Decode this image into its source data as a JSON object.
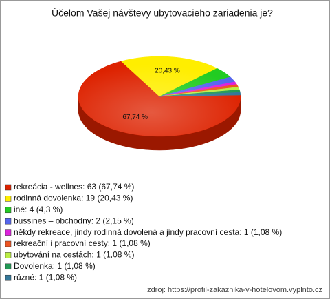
{
  "chart_data": {
    "type": "pie",
    "title": "Účelom Vašej návštevy ubytovacieho zariadenia je?",
    "categories": [
      "rekreácia - wellnes: 63 (67,74 %)",
      "rodinná dovolenka: 19 (20,43 %)",
      "iné: 4 (4,3 %)",
      "bussines – obchodný: 2 (2,15 %)",
      "někdy rekreace, jindy rodinná dovolená a jindy pracovní cesta: 1 (1,08 %)",
      "rekreační i pracovní cesty: 1 (1,08 %)",
      "ubytování na cestách: 1 (1,08 %)",
      "Dovolenka: 1 (1,08 %)",
      "různé: 1 (1,08 %)"
    ],
    "values": [
      67.74,
      20.43,
      4.3,
      2.15,
      1.08,
      1.08,
      1.08,
      1.08,
      1.08
    ],
    "value_labels": [
      "67,74 %",
      "20,43 %",
      null,
      null,
      null,
      null,
      null,
      null,
      null
    ],
    "colors": [
      "#dd2200",
      "#ffee00",
      "#22cc22",
      "#5566ee",
      "#dd22dd",
      "#ee5522",
      "#bbee44",
      "#229955",
      "#337799"
    ],
    "source": "zdroj: https://profil-zakaznika-v-hotelovom.vyplnto.cz"
  }
}
